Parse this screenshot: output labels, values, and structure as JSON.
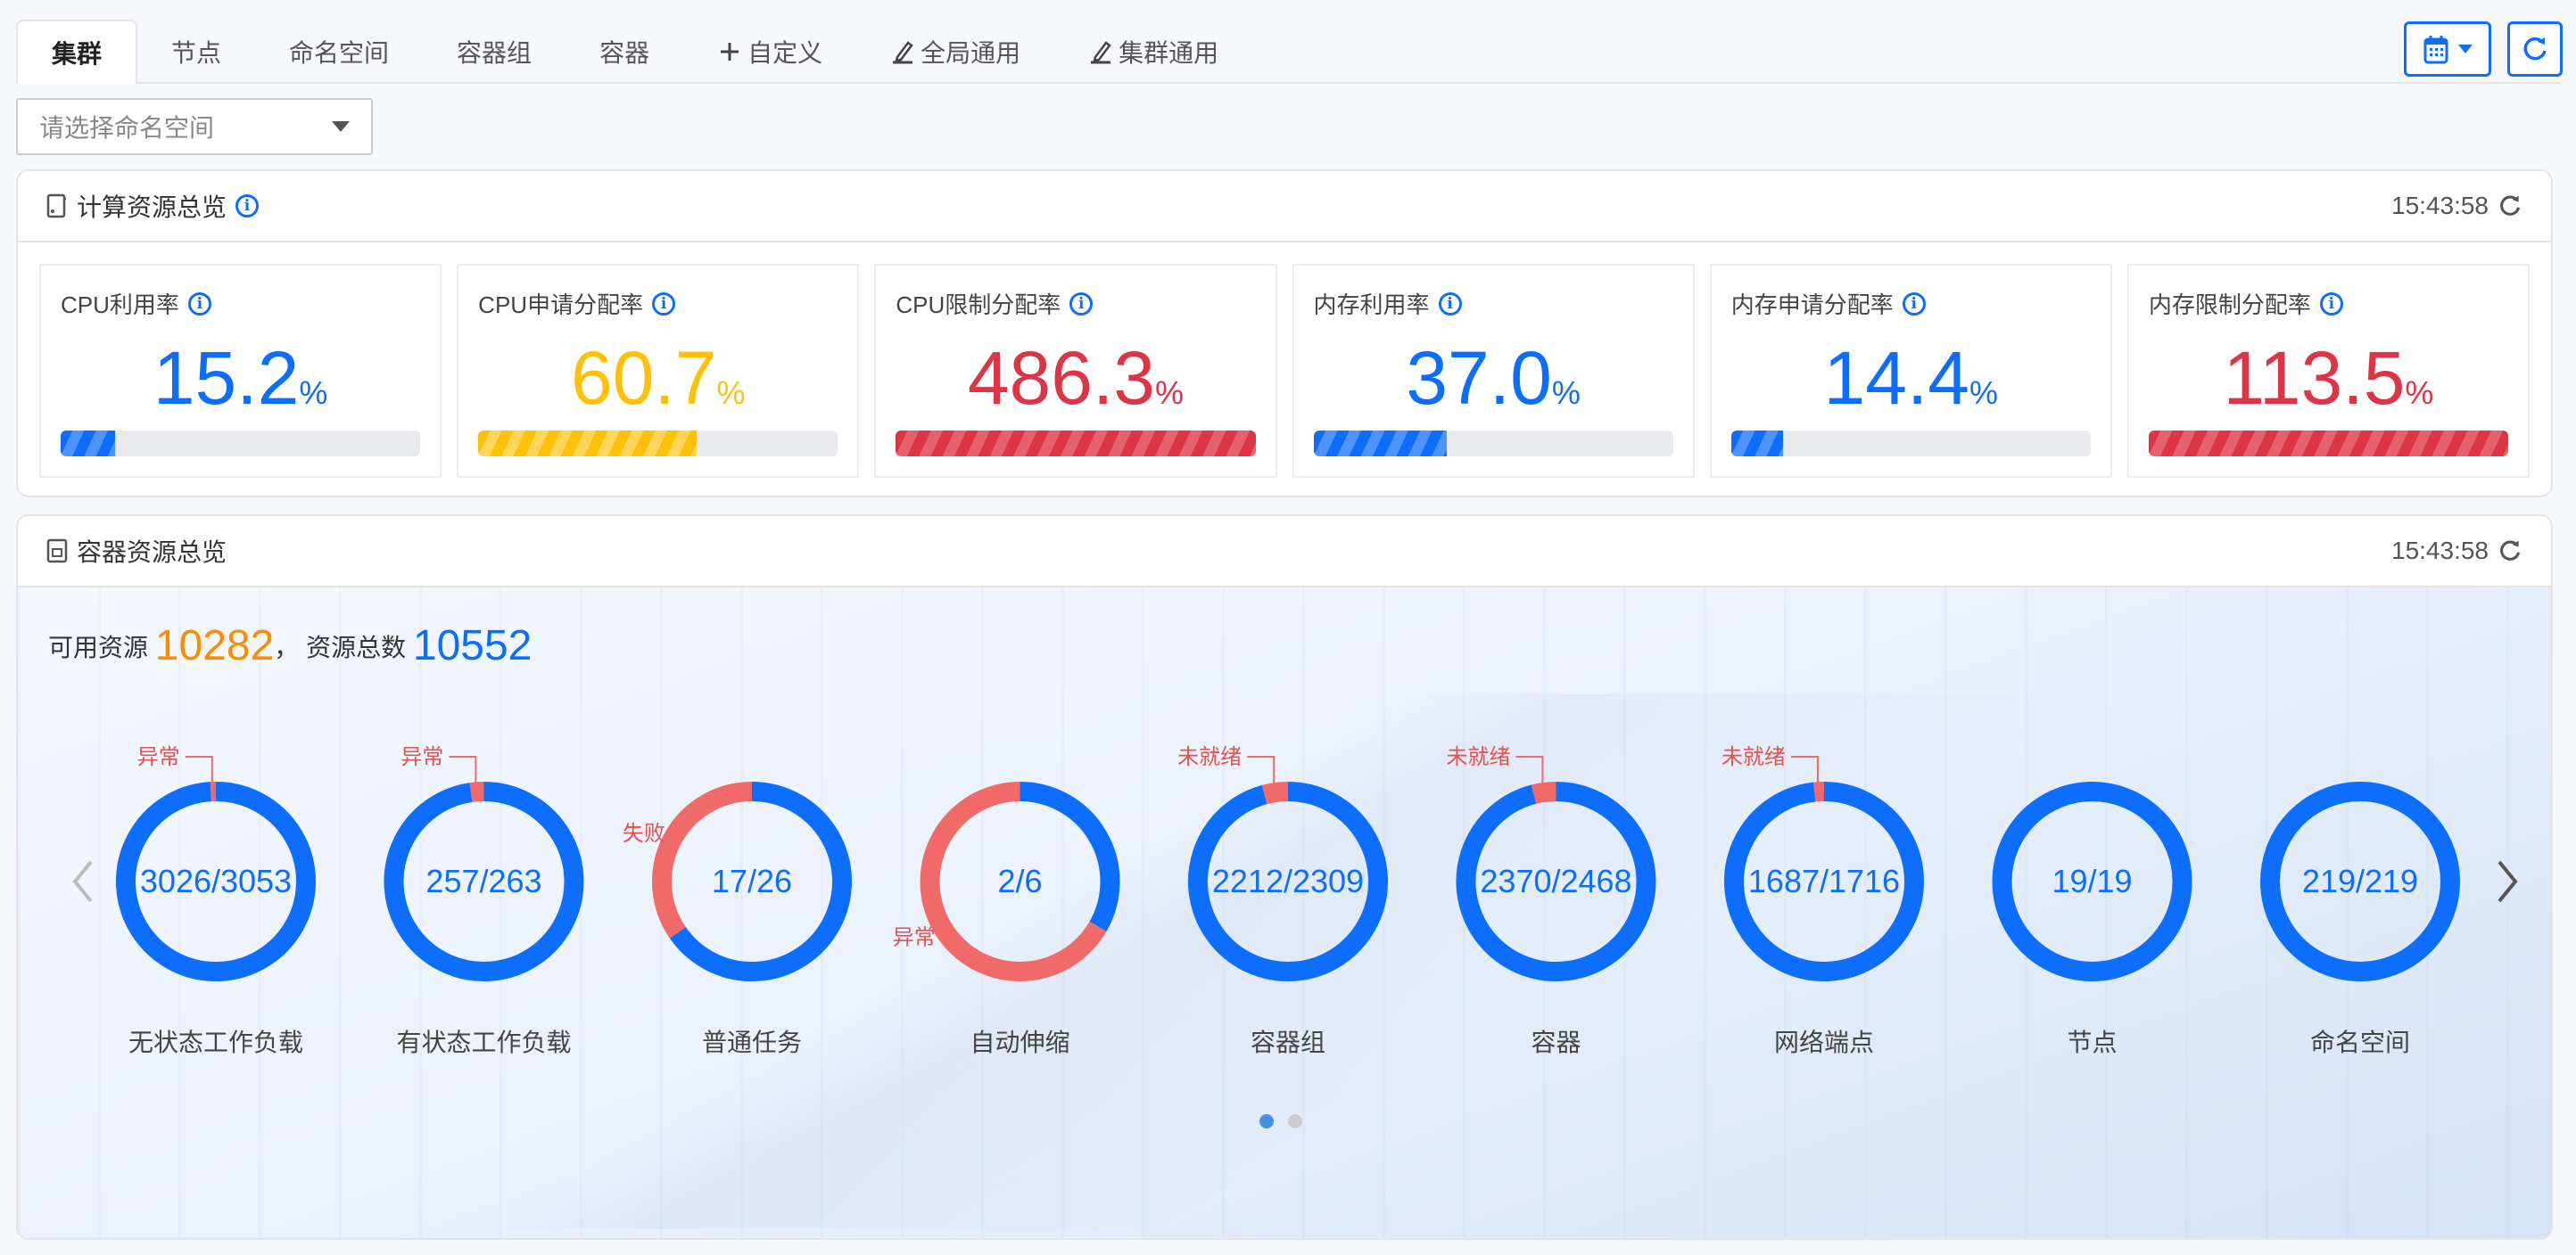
{
  "tabs": [
    {
      "label": "集群",
      "active": true
    },
    {
      "label": "节点"
    },
    {
      "label": "命名空间"
    },
    {
      "label": "容器组"
    },
    {
      "label": "容器"
    },
    {
      "label": "自定义",
      "icon": "plus-icon"
    },
    {
      "label": "全局通用",
      "icon": "edit-icon"
    },
    {
      "label": "集群通用",
      "icon": "edit-icon"
    }
  ],
  "toolbar": {
    "calendar_icon": "calendar-icon",
    "refresh_icon": "refresh-icon"
  },
  "namespace_select": {
    "placeholder": "请选择命名空间"
  },
  "compute": {
    "title": "计算资源总览",
    "time": "15:43:58",
    "cards": [
      {
        "title": "CPU利用率",
        "value": "15.2",
        "unit": "%",
        "percent": 15.2,
        "color": "#0d6efd"
      },
      {
        "title": "CPU申请分配率",
        "value": "60.7",
        "unit": "%",
        "percent": 60.7,
        "color": "#ffc107"
      },
      {
        "title": "CPU限制分配率",
        "value": "486.3",
        "unit": "%",
        "percent": 486.3,
        "color": "#dc3545"
      },
      {
        "title": "内存利用率",
        "value": "37.0",
        "unit": "%",
        "percent": 37.0,
        "color": "#0d6efd"
      },
      {
        "title": "内存申请分配率",
        "value": "14.4",
        "unit": "%",
        "percent": 14.4,
        "color": "#0d6efd"
      },
      {
        "title": "内存限制分配率",
        "value": "113.5",
        "unit": "%",
        "percent": 113.5,
        "color": "#dc3545"
      }
    ]
  },
  "container": {
    "title": "容器资源总览",
    "time": "15:43:58",
    "available_label": "可用资源",
    "available": "10282",
    "sep": "，",
    "total_label": "资源总数",
    "total": "10552",
    "donuts": [
      {
        "name": "无状态工作负载",
        "ok": 3026,
        "total": 3053,
        "text": "3026/3053",
        "bad_label": "异常"
      },
      {
        "name": "有状态工作负载",
        "ok": 257,
        "total": 263,
        "text": "257/263",
        "bad_label": "异常"
      },
      {
        "name": "普通任务",
        "ok": 17,
        "total": 26,
        "text": "17/26",
        "bad_label": "失败"
      },
      {
        "name": "自动伸缩",
        "ok": 2,
        "total": 6,
        "text": "2/6",
        "bad_label": "异常"
      },
      {
        "name": "容器组",
        "ok": 2212,
        "total": 2309,
        "text": "2212/2309",
        "bad_label": "未就绪"
      },
      {
        "name": "容器",
        "ok": 2370,
        "total": 2468,
        "text": "2370/2468",
        "bad_label": "未就绪"
      },
      {
        "name": "网络端点",
        "ok": 1687,
        "total": 1716,
        "text": "1687/1716",
        "bad_label": "未就绪"
      },
      {
        "name": "节点",
        "ok": 19,
        "total": 19,
        "text": "19/19"
      },
      {
        "name": "命名空间",
        "ok": 219,
        "total": 219,
        "text": "219/219"
      }
    ],
    "page": 1,
    "pages": 2
  },
  "colors": {
    "ok": "#0d6efd",
    "bad": "#f06a6a",
    "available": "#fd8c00",
    "total": "#0d6efd"
  }
}
